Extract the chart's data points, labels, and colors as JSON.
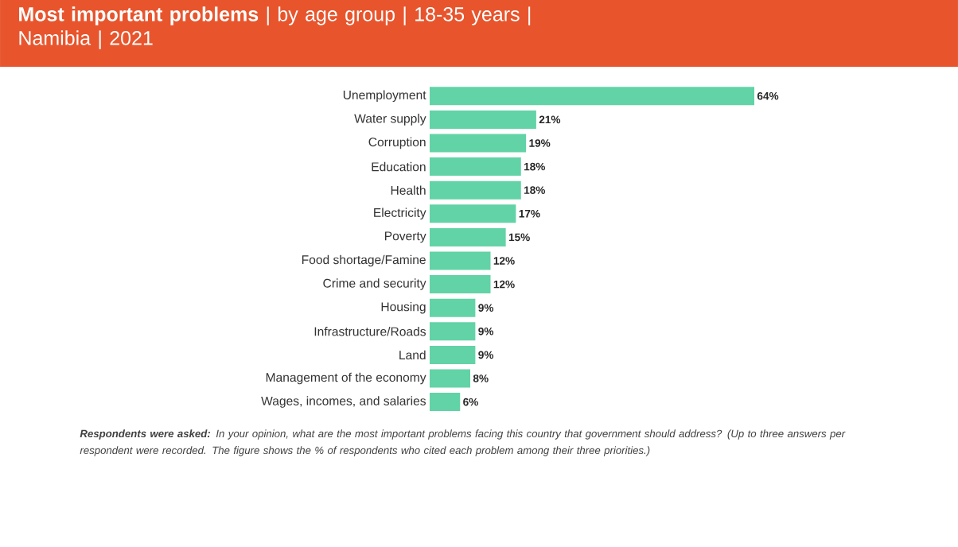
{
  "chart_data": {
    "type": "bar",
    "orientation": "horizontal",
    "title": "**Most important problems** | by age group | 18-35 years | Namibia | 2021",
    "categories": [
      "Unemployment",
      "Water supply",
      "Corruption",
      "Education",
      "Health",
      "Electricity",
      "Poverty",
      "Food shortage/Famine",
      "Crime and security",
      "Housing",
      "Infrastructure/Roads",
      "Land",
      "Management of the economy",
      "Wages, incomes, and salaries"
    ],
    "values": [
      64,
      21,
      19,
      18,
      18,
      17,
      15,
      12,
      12,
      9,
      9,
      9,
      8,
      6
    ],
    "value_labels": [
      "64%",
      "21%",
      "19%",
      "18%",
      "18%",
      "17%",
      "15%",
      "12%",
      "12%",
      "9%",
      "9%",
      "9%",
      "8%",
      "6%"
    ],
    "color": "#62d3a6",
    "annotations": [
      "**Respondents were asked:** In your opinion, what are the most important problems facing this country that government should address? (Up to three answers per respondent were recorded. The figure shows the % of respondents who cited each problem among their three priorities.)"
    ]
  }
}
